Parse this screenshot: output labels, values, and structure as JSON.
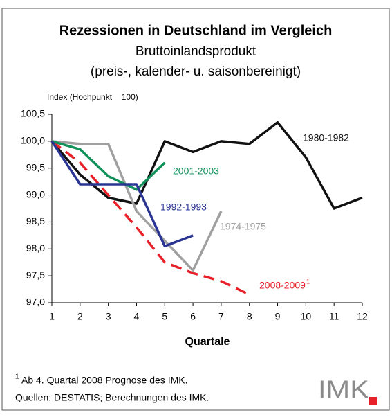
{
  "chart_data": {
    "type": "line",
    "title": "Rezessionen in Deutschland im Vergleich",
    "subtitle": [
      "Bruttoinlandsprodukt",
      "(preis-, kalender- u. saisonbereinigt)"
    ],
    "y_label": "Index (Hochpunkt = 100)",
    "x_label": "Quartale",
    "x": [
      1,
      2,
      3,
      4,
      5,
      6,
      7,
      8,
      9,
      10,
      11,
      12
    ],
    "xlim": [
      1,
      12
    ],
    "xticks": [
      1,
      2,
      3,
      4,
      5,
      6,
      7,
      8,
      9,
      10,
      11,
      12
    ],
    "ylim": [
      97.0,
      100.5
    ],
    "yticks": [
      {
        "value": 97.0,
        "label": "97,0"
      },
      {
        "value": 97.5,
        "label": "97,5"
      },
      {
        "value": 98.0,
        "label": "98,0"
      },
      {
        "value": 98.5,
        "label": "98,5"
      },
      {
        "value": 99.0,
        "label": "99,0"
      },
      {
        "value": 99.5,
        "label": "99,5"
      },
      {
        "value": 100.0,
        "label": "100,0"
      },
      {
        "value": 100.5,
        "label": "100,5"
      }
    ],
    "grid": false,
    "series": [
      {
        "name": "1980-1982",
        "color": "#111111",
        "dash": false,
        "values": [
          100.0,
          99.38,
          98.95,
          98.84,
          100.0,
          99.8,
          100.0,
          99.95,
          100.35,
          99.7,
          98.75,
          98.95
        ]
      },
      {
        "name": "1974-1975",
        "color": "#a0a0a0",
        "dash": false,
        "values": [
          100.0,
          99.95,
          99.95,
          98.7,
          98.15,
          97.6,
          98.7,
          null,
          null,
          null,
          null,
          null
        ]
      },
      {
        "name": "2008-2009",
        "footnote_mark": "1",
        "color": "#e8202a",
        "dash": true,
        "values": [
          100.0,
          99.6,
          99.0,
          98.4,
          97.75,
          97.55,
          97.4,
          97.15,
          null,
          null,
          null,
          null
        ]
      },
      {
        "name": "2001-2003",
        "color": "#12915a",
        "dash": false,
        "values": [
          100.0,
          99.85,
          99.35,
          99.1,
          99.6,
          null,
          null,
          null,
          null,
          null,
          null,
          null
        ]
      },
      {
        "name": "1992-1993",
        "color": "#2a3593",
        "dash": false,
        "values": [
          100.0,
          99.2,
          99.2,
          99.2,
          98.05,
          98.25,
          null,
          null,
          null,
          null,
          null,
          null
        ]
      }
    ],
    "footnote": {
      "mark": "1",
      "text": "Ab 4. Quartal 2008 Prognose des IMK."
    },
    "source": "Quellen: DESTATIS; Berechnungen des IMK.",
    "logo": "IMK"
  }
}
